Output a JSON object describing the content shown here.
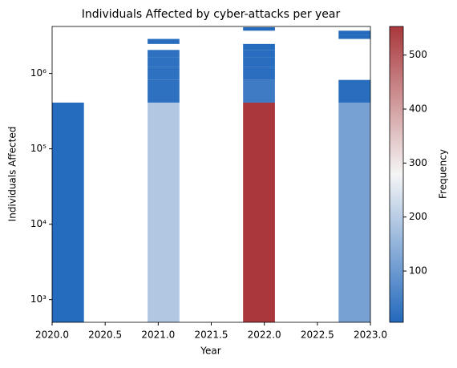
{
  "chart_data": {
    "type": "histogram2d",
    "title": "Individuals Affected by cyber-attacks per year",
    "xlabel": "Year",
    "ylabel": "Individuals Affected",
    "colorbar_label": "Frequency",
    "xbins": [
      2020,
      2020.3,
      2020.6,
      2020.9,
      2021.2,
      2021.5,
      2021.8,
      2022.1,
      2022.4,
      2022.7,
      2023
    ],
    "ybins": [
      500,
      410450,
      820400,
      1230350,
      1640300,
      2050250,
      2460200,
      2870150,
      3280100,
      3690050,
      4100000
    ],
    "counts": [
      [
        8,
        null,
        null,
        null,
        null,
        null,
        null,
        null,
        null,
        null
      ],
      [
        null,
        null,
        null,
        null,
        null,
        null,
        null,
        null,
        null,
        null
      ],
      [
        null,
        null,
        null,
        null,
        null,
        null,
        null,
        null,
        null,
        null
      ],
      [
        190,
        20,
        20,
        20,
        20,
        null,
        10,
        null,
        null,
        null
      ],
      [
        null,
        null,
        null,
        null,
        null,
        null,
        null,
        null,
        null,
        null
      ],
      [
        null,
        null,
        null,
        null,
        null,
        null,
        null,
        null,
        null,
        null
      ],
      [
        553,
        40,
        15,
        12,
        10,
        8,
        null,
        null,
        null,
        6
      ],
      [
        null,
        null,
        null,
        null,
        null,
        null,
        null,
        null,
        null,
        null
      ],
      [
        null,
        null,
        null,
        null,
        null,
        null,
        null,
        null,
        null,
        null
      ],
      [
        115,
        12,
        null,
        null,
        null,
        null,
        null,
        6,
        5,
        null
      ]
    ],
    "xlim": [
      2020,
      2023
    ],
    "xticks": [
      {
        "value": 2020,
        "label": "2020.0"
      },
      {
        "value": 2020.5,
        "label": "2020.5"
      },
      {
        "value": 2021,
        "label": "2021.0"
      },
      {
        "value": 2021.5,
        "label": "2021.5"
      },
      {
        "value": 2022,
        "label": "2022.0"
      },
      {
        "value": 2022.5,
        "label": "2022.5"
      },
      {
        "value": 2023,
        "label": "2023.0"
      }
    ],
    "ylim": [
      500,
      4200000
    ],
    "yscale": "log",
    "yticks": [
      {
        "value": 1000,
        "label": "10³"
      },
      {
        "value": 10000,
        "label": "10⁴"
      },
      {
        "value": 100000,
        "label": "10⁵"
      },
      {
        "value": 1000000,
        "label": "10⁶"
      }
    ],
    "clim": [
      5,
      553
    ],
    "cticks": [
      100,
      200,
      300,
      400,
      500
    ],
    "colormap": [
      "#2369bd",
      "#f5f5f5",
      "#a9373b"
    ]
  }
}
